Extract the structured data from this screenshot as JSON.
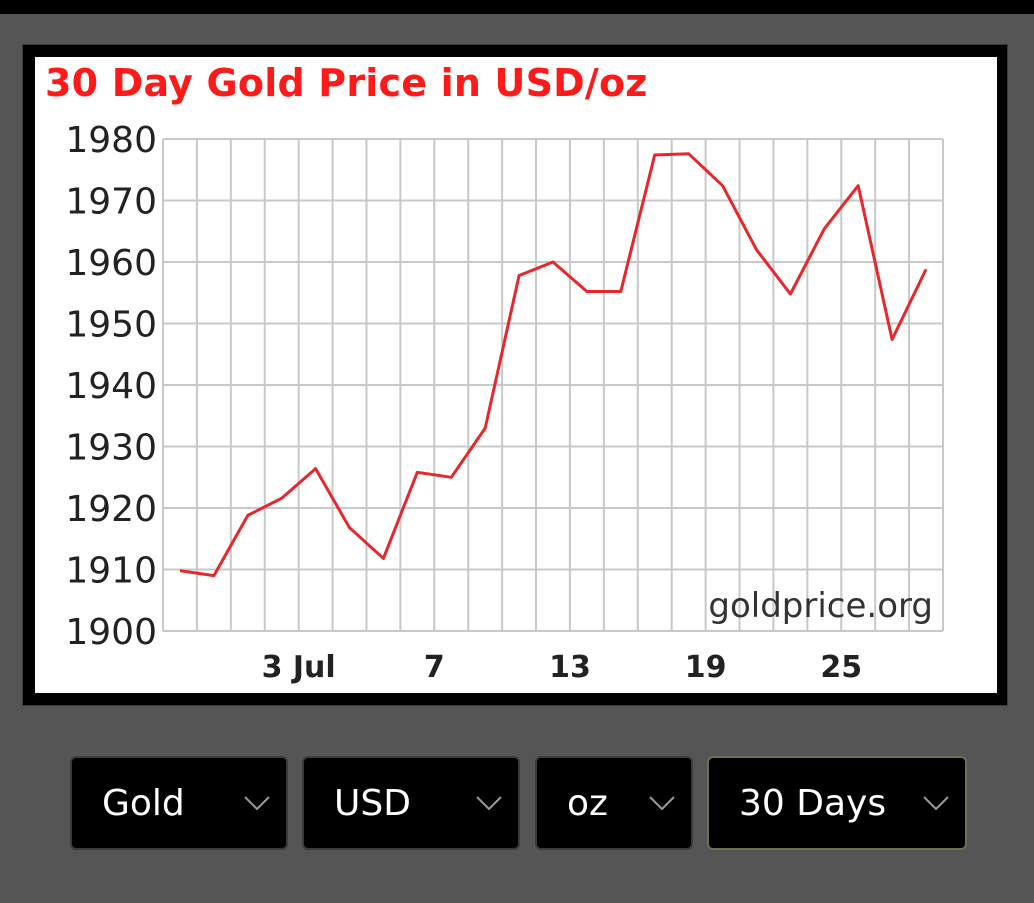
{
  "chart_data": {
    "type": "line",
    "title": "30 Day Gold Price in USD/oz",
    "watermark": "goldprice.org",
    "x_tick_labels": [
      {
        "x": 4,
        "label": "3 Jul"
      },
      {
        "x": 8,
        "label": "7"
      },
      {
        "x": 12,
        "label": "13"
      },
      {
        "x": 16,
        "label": "19"
      },
      {
        "x": 20,
        "label": "25"
      }
    ],
    "y_ticks": [
      1900,
      1910,
      1920,
      1930,
      1940,
      1950,
      1960,
      1970,
      1980
    ],
    "ylim": [
      1900,
      1980
    ],
    "xlim": [
      0,
      23
    ],
    "grid": true,
    "line_color": "#e8262b",
    "title_color": "#ff1a1a",
    "series": [
      {
        "x": [
          0.5,
          1.5,
          2.5,
          3.5,
          4.5,
          5.5,
          6.5,
          7.5,
          8.5,
          9.5,
          10.5,
          11.5,
          12.5,
          13.5,
          14.5,
          15.5,
          16.5,
          17.5,
          18.5,
          19.5,
          20.5,
          21.5,
          22.5
        ],
        "values": [
          1909.8,
          1909.0,
          1918.8,
          1921.6,
          1926.4,
          1916.8,
          1911.8,
          1925.8,
          1925.0,
          1933.0,
          1957.8,
          1960.0,
          1955.2,
          1955.2,
          1977.4,
          1977.6,
          1972.4,
          1962.0,
          1954.8,
          1965.4,
          1972.4,
          1947.4,
          1958.8
        ]
      }
    ]
  },
  "controls": {
    "metal": "Gold",
    "currency": "USD",
    "unit": "oz",
    "period": "30 Days"
  },
  "icons": {
    "chevron": "chevron-down-icon"
  }
}
